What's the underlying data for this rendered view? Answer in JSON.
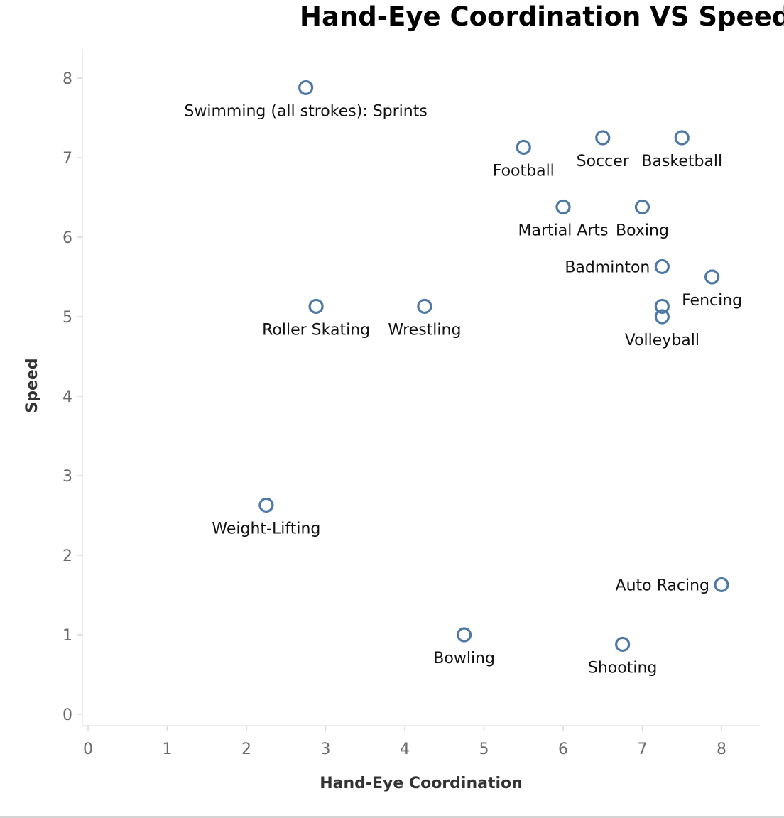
{
  "chart_data": {
    "type": "scatter",
    "title": "Hand-Eye Coordination VS Speed",
    "xlabel": "Hand-Eye Coordination",
    "ylabel": "Speed",
    "xlim": [
      -0.1,
      8.5
    ],
    "ylim": [
      -0.15,
      8.35
    ],
    "xticks": [
      0,
      1,
      2,
      3,
      4,
      5,
      6,
      7,
      8
    ],
    "yticks": [
      0,
      1,
      2,
      3,
      4,
      5,
      6,
      7,
      8
    ],
    "grid": false,
    "marker": "hollow-circle",
    "color": "#4e79a7",
    "points": [
      {
        "label": "Swimming (all strokes): Sprints",
        "x": 2.75,
        "y": 7.88,
        "label_pos": "below"
      },
      {
        "label": "Football",
        "x": 5.5,
        "y": 7.13,
        "label_pos": "below"
      },
      {
        "label": "Soccer",
        "x": 6.5,
        "y": 7.25,
        "label_pos": "below"
      },
      {
        "label": "Basketball",
        "x": 7.5,
        "y": 7.25,
        "label_pos": "below"
      },
      {
        "label": "Martial Arts",
        "x": 6.0,
        "y": 6.38,
        "label_pos": "below"
      },
      {
        "label": "Boxing",
        "x": 7.0,
        "y": 6.38,
        "label_pos": "below"
      },
      {
        "label": "Badminton",
        "x": 7.25,
        "y": 5.63,
        "label_pos": "left"
      },
      {
        "label": "Fencing",
        "x": 7.88,
        "y": 5.5,
        "label_pos": "below"
      },
      {
        "label": "Volleyball",
        "x": 7.25,
        "y": 5.13,
        "label_pos": "none"
      },
      {
        "label": "Volleyball",
        "x": 7.25,
        "y": 5.0,
        "label_pos": "below"
      },
      {
        "label": "Roller Skating",
        "x": 2.88,
        "y": 5.13,
        "label_pos": "below"
      },
      {
        "label": "Wrestling",
        "x": 4.25,
        "y": 5.13,
        "label_pos": "below"
      },
      {
        "label": "Weight-Lifting",
        "x": 2.25,
        "y": 2.63,
        "label_pos": "below"
      },
      {
        "label": "Auto Racing",
        "x": 8.0,
        "y": 1.63,
        "label_pos": "left"
      },
      {
        "label": "Bowling",
        "x": 4.75,
        "y": 1.0,
        "label_pos": "below"
      },
      {
        "label": "Shooting",
        "x": 6.75,
        "y": 0.88,
        "label_pos": "below"
      }
    ]
  }
}
